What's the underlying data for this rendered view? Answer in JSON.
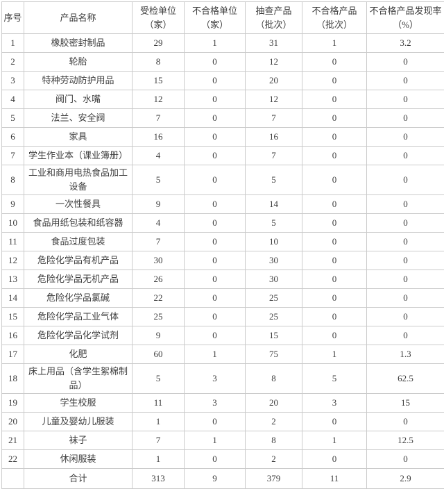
{
  "colors": {
    "text": "#3d3d3d",
    "muted_text": "#a0a0a0",
    "border": "#cbcbcb",
    "background": "#ffffff"
  },
  "table": {
    "headers": [
      "序号",
      "产品名称",
      "受检单位（家）",
      "不合格单位（家）",
      "抽查产品（批次）",
      "不合格产品（批次）",
      "不合格产品发现率（%）"
    ],
    "rows": [
      {
        "no": "1",
        "name": "橡胶密封制品",
        "muted": false,
        "values": [
          "29",
          "1",
          "31",
          "1",
          "3.2"
        ]
      },
      {
        "no": "2",
        "name": "轮胎",
        "muted": false,
        "values": [
          "8",
          "0",
          "12",
          "0",
          "0"
        ]
      },
      {
        "no": "3",
        "name": "特种劳动防护用品",
        "muted": false,
        "values": [
          "15",
          "0",
          "20",
          "0",
          "0"
        ]
      },
      {
        "no": "4",
        "name": "阀门、水嘴",
        "muted": true,
        "values": [
          "12",
          "0",
          "12",
          "0",
          "0"
        ]
      },
      {
        "no": "5",
        "name": "法兰、安全阀",
        "muted": true,
        "values": [
          "7",
          "0",
          "7",
          "0",
          "0"
        ]
      },
      {
        "no": "6",
        "name": "家具",
        "muted": false,
        "values": [
          "16",
          "0",
          "16",
          "0",
          "0"
        ]
      },
      {
        "no": "7",
        "name": "学生作业本（课业簿册）",
        "muted": false,
        "values": [
          "4",
          "0",
          "7",
          "0",
          "0"
        ]
      },
      {
        "no": "8",
        "name": "工业和商用电热食品加工设备",
        "muted": false,
        "values": [
          "5",
          "0",
          "5",
          "0",
          "0"
        ]
      },
      {
        "no": "9",
        "name": "一次性餐具",
        "muted": false,
        "values": [
          "9",
          "0",
          "14",
          "0",
          "0"
        ]
      },
      {
        "no": "10",
        "name": "食品用纸包装和纸容器",
        "muted": true,
        "values": [
          "4",
          "0",
          "5",
          "0",
          "0"
        ]
      },
      {
        "no": "11",
        "name": "食品过度包装",
        "muted": false,
        "values": [
          "7",
          "0",
          "10",
          "0",
          "0"
        ]
      },
      {
        "no": "12",
        "name": "危险化学品有机产品",
        "muted": false,
        "values": [
          "30",
          "0",
          "30",
          "0",
          "0"
        ]
      },
      {
        "no": "13",
        "name": "危险化学品无机产品",
        "muted": false,
        "values": [
          "26",
          "0",
          "30",
          "0",
          "0"
        ]
      },
      {
        "no": "14",
        "name": "危险化学品氯碱",
        "muted": false,
        "values": [
          "22",
          "0",
          "25",
          "0",
          "0"
        ]
      },
      {
        "no": "15",
        "name": "危险化学品工业气体",
        "muted": false,
        "values": [
          "25",
          "0",
          "25",
          "0",
          "0"
        ]
      },
      {
        "no": "16",
        "name": "危险化学品化学试剂",
        "muted": false,
        "values": [
          "9",
          "0",
          "15",
          "0",
          "0"
        ]
      },
      {
        "no": "17",
        "name": "化肥",
        "muted": false,
        "values": [
          "60",
          "1",
          "75",
          "1",
          "1.3"
        ]
      },
      {
        "no": "18",
        "name": "床上用品（含学生絮棉制品）",
        "muted": true,
        "values": [
          "5",
          "3",
          "8",
          "5",
          "62.5"
        ]
      },
      {
        "no": "19",
        "name": "学生校服",
        "muted": false,
        "values": [
          "11",
          "3",
          "20",
          "3",
          "15"
        ]
      },
      {
        "no": "20",
        "name": "儿童及婴幼儿服装",
        "muted": true,
        "values": [
          "1",
          "0",
          "2",
          "0",
          "0"
        ]
      },
      {
        "no": "21",
        "name": "袜子",
        "muted": false,
        "values": [
          "7",
          "1",
          "8",
          "1",
          "12.5"
        ]
      },
      {
        "no": "22",
        "name": "休闲服装",
        "muted": false,
        "values": [
          "1",
          "0",
          "2",
          "0",
          "0"
        ]
      }
    ],
    "total_row": {
      "no": "",
      "name": "合计",
      "muted": false,
      "values": [
        "313",
        "9",
        "379",
        "11",
        "2.9"
      ]
    }
  }
}
